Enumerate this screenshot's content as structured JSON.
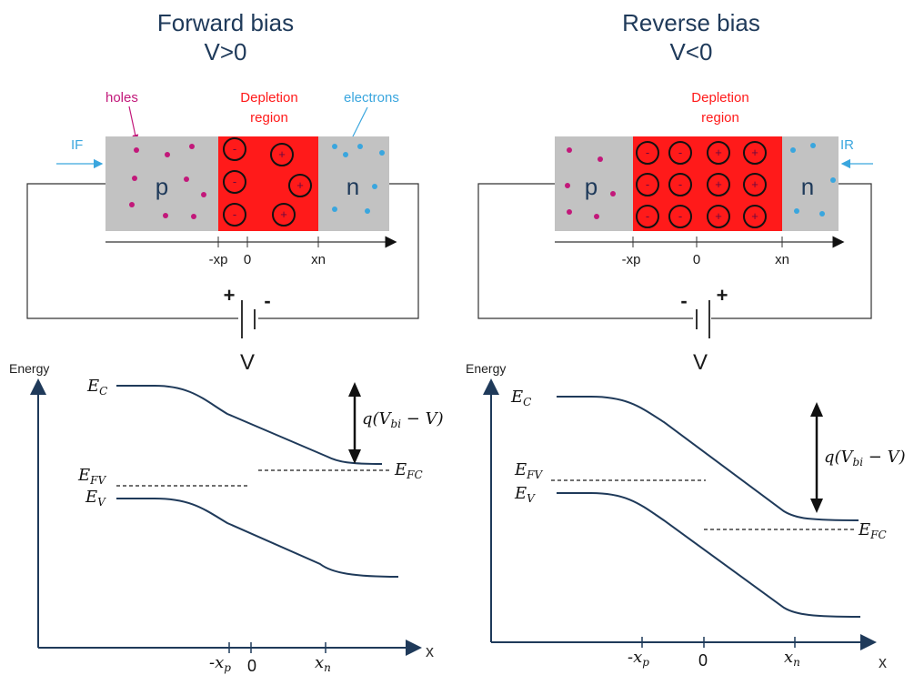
{
  "panels": [
    {
      "id": "forward",
      "title_line1": "Forward bias",
      "title_line2": "V>0",
      "holes_label": "holes",
      "depletion_line1": "Depletion",
      "depletion_line2": "region",
      "electrons_label": "electrons",
      "current_label": "IF",
      "p_label": "p",
      "n_label": "n",
      "axis_ticks": [
        "-xp",
        "0",
        "xn"
      ],
      "battery_left_sign": "+",
      "battery_right_sign": "-",
      "voltage_label": "V",
      "energy_label": "Energy",
      "x_label": "x",
      "Ec": "E",
      "Ec_sub": "C",
      "Ev": "E",
      "Ev_sub": "V",
      "Efv": "E",
      "Efv_sub": "FV",
      "Efc": "E",
      "Efc_sub": "FC",
      "barrier_q": "q(V",
      "barrier_sub": "bi",
      "barrier_rest": " − V)",
      "tick_xp": "-x",
      "tick_xp_sub": "p",
      "tick_zero": "0",
      "tick_xn": "x",
      "tick_xn_sub": "n"
    },
    {
      "id": "reverse",
      "title_line1": "Reverse bias",
      "title_line2": "V<0",
      "depletion_line1": "Depletion",
      "depletion_line2": "region",
      "current_label": "IR",
      "p_label": "p",
      "n_label": "n",
      "axis_ticks": [
        "-xp",
        "0",
        "xn"
      ],
      "battery_left_sign": "-",
      "battery_right_sign": "+",
      "voltage_label": "V",
      "energy_label": "Energy",
      "x_label": "x",
      "Ec": "E",
      "Ec_sub": "C",
      "Ev": "E",
      "Ev_sub": "V",
      "Efv": "E",
      "Efv_sub": "FV",
      "Efc": "E",
      "Efc_sub": "FC",
      "barrier_q": "q(V",
      "barrier_sub": "bi",
      "barrier_rest": " − V)",
      "tick_xp": "-x",
      "tick_xp_sub": "p",
      "tick_zero": "0",
      "tick_xn": "x",
      "tick_xn_sub": "n"
    }
  ],
  "colors": {
    "title": "#1f3a5a",
    "depletion_fill": "#ff1a1a",
    "neutral_fill": "#c2c2c2",
    "holes": "#c2187a",
    "electrons": "#3aa6de",
    "band_line": "#1f3a5a"
  }
}
